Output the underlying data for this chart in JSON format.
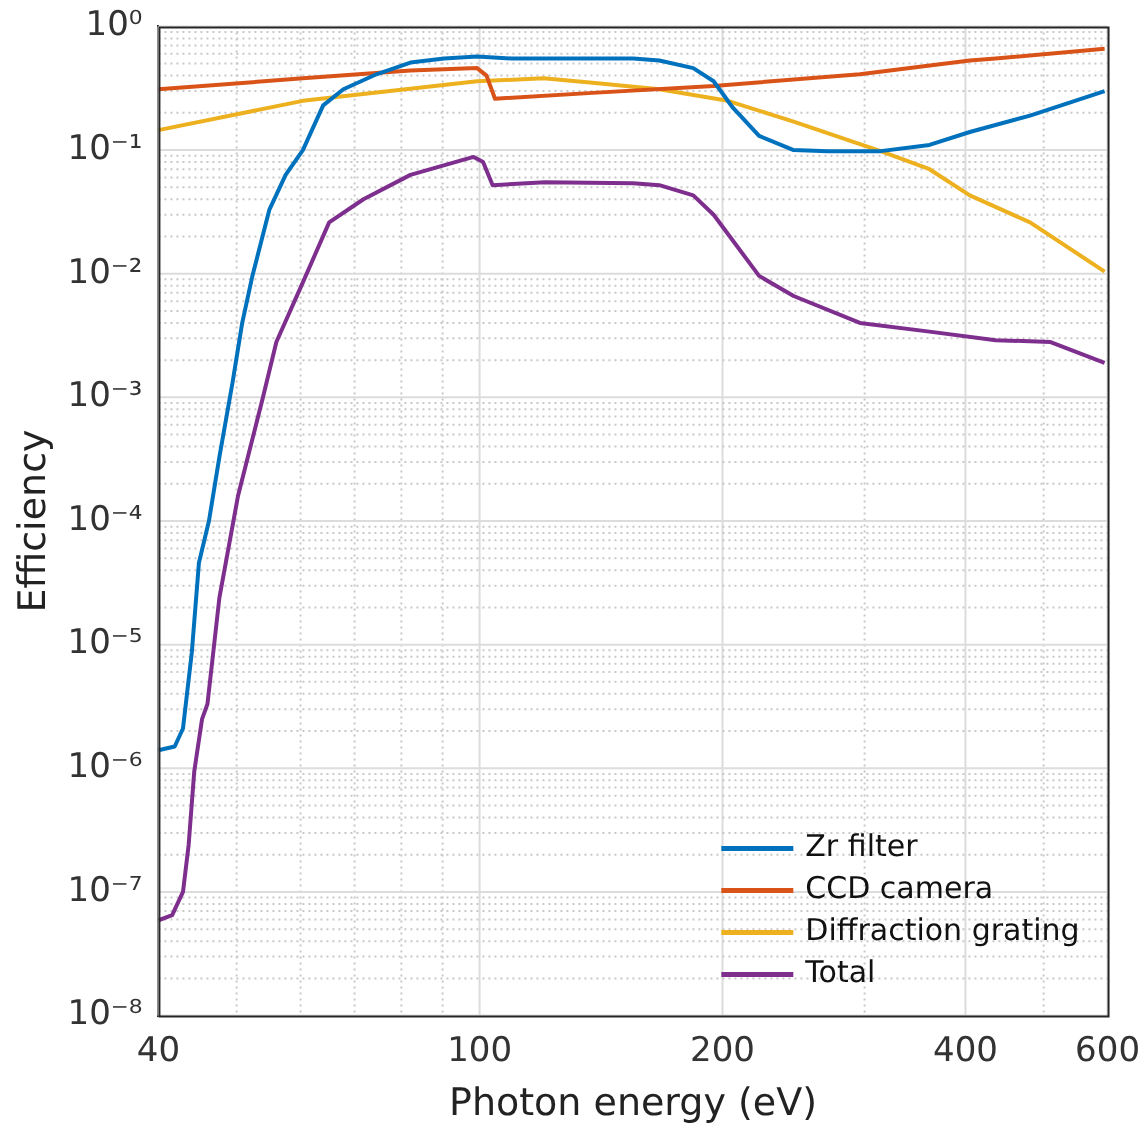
{
  "chart_data": {
    "type": "line",
    "xlabel": "Photon energy (eV)",
    "ylabel": "Efficiency",
    "log": "xy",
    "grid": true,
    "legend": "bottom right",
    "line_style": "solid",
    "marker": "none",
    "xlim": [
      40,
      600
    ],
    "xticks": [
      40,
      100,
      200,
      400,
      600
    ],
    "ylim": [
      1e-08,
      1
    ],
    "yticks": [
      {
        "value": 1e-08,
        "label": "10⁻⁸"
      },
      {
        "value": 1e-07,
        "label": "10⁻⁷"
      },
      {
        "value": 1e-06,
        "label": "10⁻⁶"
      },
      {
        "value": 1e-05,
        "label": "10⁻⁵"
      },
      {
        "value": 0.0001,
        "label": "10⁻⁴"
      },
      {
        "value": 0.001,
        "label": "10⁻³"
      },
      {
        "value": 0.01,
        "label": "10⁻²"
      },
      {
        "value": 0.1,
        "label": "10⁻¹"
      },
      {
        "value": 1,
        "label": "10⁰"
      }
    ],
    "series": [
      {
        "name": "Zr filter",
        "color": "#0072bd",
        "x": [
          40,
          41.9,
          42.9,
          44.0,
          44.9,
          46.2,
          47.6,
          49.4,
          50.8,
          52.3,
          54.9,
          57.5,
          60.4,
          64.0,
          67.8,
          74.5,
          82.1,
          90.4,
          99.3,
          109.5,
          138,
          155,
          167,
          184,
          195,
          206,
          222,
          245,
          270,
          314,
          361,
          405,
          481,
          595
        ],
        "values": [
          1.4e-06,
          1.5e-06,
          2.1e-06,
          8.7e-06,
          4.6e-05,
          0.0001,
          0.00033,
          0.0013,
          0.004,
          0.0096,
          0.033,
          0.063,
          0.1,
          0.23,
          0.31,
          0.41,
          0.51,
          0.55,
          0.57,
          0.55,
          0.55,
          0.55,
          0.53,
          0.46,
          0.36,
          0.22,
          0.13,
          0.1,
          0.098,
          0.098,
          0.11,
          0.14,
          0.19,
          0.3
        ]
      },
      {
        "name": "CCD camera",
        "color": "#d95319",
        "x": [
          40,
          60.4,
          82.1,
          99.3,
          102,
          104.5,
          138,
          195,
          296,
          405,
          436,
          595
        ],
        "values": [
          0.31,
          0.38,
          0.44,
          0.46,
          0.4,
          0.26,
          0.29,
          0.33,
          0.41,
          0.53,
          0.55,
          0.66
        ]
      },
      {
        "name": "Diffraction grating",
        "color": "#edb120",
        "x": [
          40,
          60.4,
          99.3,
          120,
          138,
          167,
          203,
          245,
          314,
          361,
          405,
          481,
          595
        ],
        "values": [
          0.145,
          0.25,
          0.36,
          0.38,
          0.35,
          0.31,
          0.25,
          0.17,
          0.098,
          0.07,
          0.043,
          0.026,
          0.0104
        ]
      },
      {
        "name": "Total",
        "color": "#7e2f8e",
        "x": [
          40,
          41.6,
          42.9,
          43.6,
          44.3,
          45.3,
          46.0,
          47.6,
          50.2,
          53.9,
          56.0,
          60.4,
          65.1,
          71.8,
          82.1,
          98.3,
          101,
          103.8,
          120.5,
          155,
          167,
          184,
          195,
          222,
          245,
          296,
          361,
          436,
          510,
          595
        ],
        "values": [
          5.9e-08,
          6.5e-08,
          1e-07,
          2.4e-07,
          9.4e-07,
          2.5e-06,
          3.3e-06,
          2.4e-05,
          0.00016,
          0.001,
          0.0028,
          0.0085,
          0.026,
          0.04,
          0.063,
          0.088,
          0.08,
          0.052,
          0.055,
          0.054,
          0.052,
          0.043,
          0.03,
          0.0096,
          0.0066,
          0.004,
          0.0034,
          0.0029,
          0.0028,
          0.0019
        ]
      }
    ]
  }
}
